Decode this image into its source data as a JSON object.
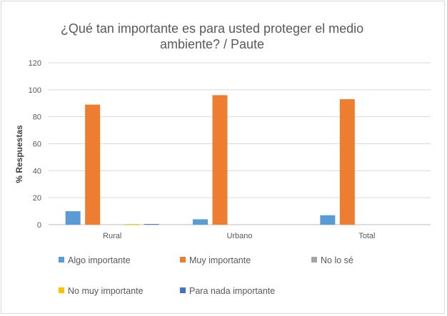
{
  "chart_data": {
    "type": "bar",
    "title_line1": "¿Qué tan importante es para usted proteger el medio",
    "title_line2": "ambiente? / Paute",
    "xlabel": "",
    "ylabel": "% Respuestas",
    "ylim": [
      0,
      120
    ],
    "yticks": [
      "0",
      "20",
      "40",
      "60",
      "80",
      "100",
      "120"
    ],
    "grid": true,
    "legend_position": "bottom",
    "categories": [
      "Rural",
      "Urbano",
      "Total"
    ],
    "series": [
      {
        "name": "Algo importante",
        "color": "#5B9BD5",
        "values": [
          10,
          4,
          7
        ]
      },
      {
        "name": "Muy importante",
        "color": "#ED7D31",
        "values": [
          89,
          96,
          93
        ]
      },
      {
        "name": "No lo sé",
        "color": "#A5A5A5",
        "values": [
          0,
          0,
          0
        ]
      },
      {
        "name": "No muy importante",
        "color": "#FFC000",
        "values": [
          0.5,
          0,
          0
        ]
      },
      {
        "name": "Para nada importante",
        "color": "#4472C4",
        "values": [
          0.5,
          0,
          0
        ]
      }
    ]
  }
}
